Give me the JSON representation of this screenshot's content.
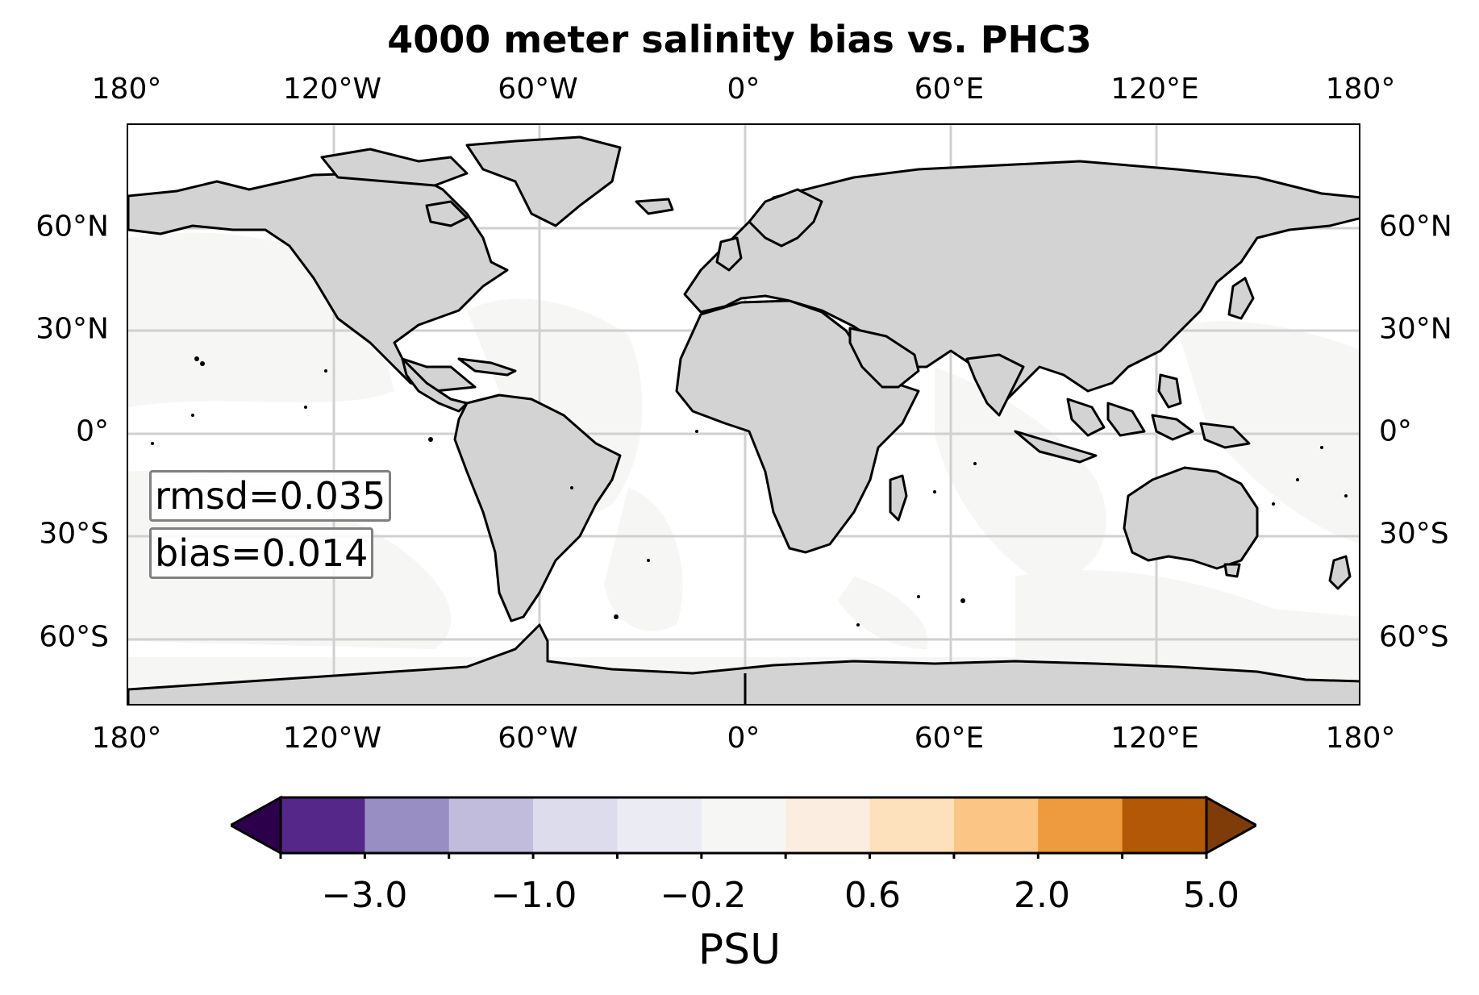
{
  "title": "4000 meter salinity bias vs. PHC3",
  "lon_ticks": [
    "180°",
    "120°W",
    "60°W",
    "0°",
    "60°E",
    "120°E",
    "180°"
  ],
  "lat_ticks": [
    "60°N",
    "30°N",
    "0°",
    "30°S",
    "60°S"
  ],
  "stats": {
    "rmsd": "rmsd=0.035",
    "bias": "bias=0.014"
  },
  "colorbar": {
    "label": "PSU",
    "tick_labels": [
      "−3.0",
      "−1.0",
      "−0.2",
      "0.6",
      "2.0",
      "5.0"
    ],
    "colors": [
      "#2d004b",
      "#542788",
      "#998ec3",
      "#c2bcdc",
      "#dcdcec",
      "#ebebf4",
      "#f6f6f4",
      "#fbeee0",
      "#fde0bc",
      "#fbc685",
      "#ed9b3e",
      "#b35806",
      "#7f3b08"
    ]
  },
  "map_colors": {
    "land": "#d3d3d3",
    "ocean_near_zero": "#f6f6f4",
    "ocean_white": "#ffffff",
    "coast": "#000000",
    "grid": "#d0d0d0"
  }
}
